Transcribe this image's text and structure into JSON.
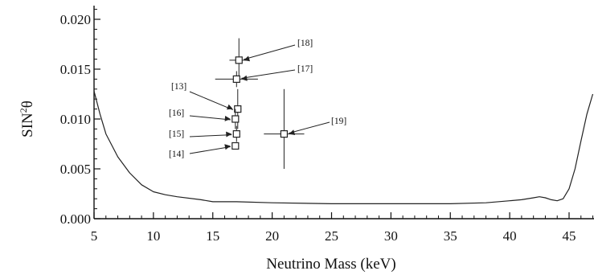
{
  "chart_data": {
    "type": "scatter",
    "xlabel": "Neutrino Mass (keV)",
    "ylabel_main": "SIN",
    "ylabel_sup": "2",
    "ylabel_tail": "θ",
    "xlim": [
      5,
      47
    ],
    "ylim": [
      0,
      0.022
    ],
    "xticks": [
      5,
      10,
      15,
      20,
      25,
      30,
      35,
      40,
      45
    ],
    "xtick_labels": [
      "5",
      "10",
      "15",
      "20",
      "25",
      "30",
      "35",
      "40",
      "45"
    ],
    "yticks": [
      0.0,
      0.005,
      0.01,
      0.015,
      0.02
    ],
    "ytick_labels": [
      "0.000",
      "0.005",
      "0.010",
      "0.015",
      "0.020"
    ],
    "grid": false,
    "points": [
      {
        "label": "[18]",
        "x": 17.2,
        "y": 0.0159,
        "xerr": 0.8,
        "yerr_low": 0.0022,
        "yerr_high": 0.0022
      },
      {
        "label": "[17]",
        "x": 17.0,
        "y": 0.014,
        "xerr": 1.8,
        "yerr_low": 0.0008,
        "yerr_high": 0.0008
      },
      {
        "label": "[13]",
        "x": 17.1,
        "y": 0.011,
        "xerr": 0.3,
        "yerr_low": 0.002,
        "yerr_high": 0.002
      },
      {
        "label": "[16]",
        "x": 16.9,
        "y": 0.01,
        "xerr": 0.3,
        "yerr_low": 0.001,
        "yerr_high": 0.001
      },
      {
        "label": "[15]",
        "x": 17.0,
        "y": 0.0085,
        "xerr": 0.3,
        "yerr_low": 0.0008,
        "yerr_high": 0.0008
      },
      {
        "label": "[14]",
        "x": 16.9,
        "y": 0.0073,
        "xerr": 0.3,
        "yerr_low": 0.0003,
        "yerr_high": 0.0003
      },
      {
        "label": "[19]",
        "x": 21.0,
        "y": 0.0085,
        "xerr": 1.7,
        "yerr_low": 0.0035,
        "yerr_high": 0.0045
      }
    ],
    "limit_curve": {
      "x": [
        5.0,
        5.5,
        6.0,
        7.0,
        8.0,
        9.0,
        10.0,
        11.0,
        12.0,
        14.0,
        15.0,
        17.0,
        20.0,
        25.0,
        30.0,
        35.0,
        38.0,
        40.0,
        41.0,
        42.0,
        42.5,
        43.0,
        43.5,
        44.0,
        44.5,
        45.0,
        45.5,
        46.0,
        46.5,
        47.0
      ],
      "y": [
        0.0128,
        0.0105,
        0.0085,
        0.0062,
        0.0046,
        0.0034,
        0.0027,
        0.0024,
        0.0022,
        0.0019,
        0.0017,
        0.0017,
        0.0016,
        0.0015,
        0.0015,
        0.0015,
        0.0016,
        0.0018,
        0.0019,
        0.0021,
        0.0022,
        0.0021,
        0.0019,
        0.0018,
        0.002,
        0.003,
        0.005,
        0.0078,
        0.0105,
        0.0125
      ]
    },
    "refs_left": [
      "[13]",
      "[16]",
      "[15]",
      "[14]"
    ],
    "refs_right": [
      "[18]",
      "[17]",
      "[19]"
    ]
  }
}
